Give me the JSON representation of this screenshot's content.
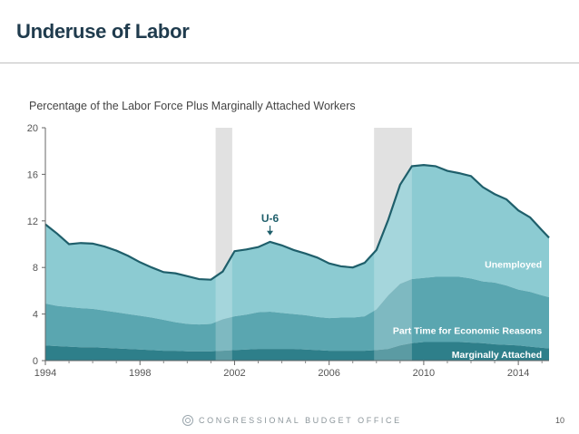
{
  "slide": {
    "title": "Underuse of Labor",
    "footer_org": "CONGRESSIONAL BUDGET OFFICE",
    "page_number": "10"
  },
  "colors": {
    "marginal": "#2e7f8a",
    "part_time": "#5aa6b0",
    "unemployed": "#8ccbd2",
    "recession": "#d9d9d9",
    "axis_text": "#555555",
    "label_text": "#ffffff",
    "u6_label": "#1f5f6b"
  },
  "chart_data": {
    "type": "area",
    "title": "Percentage of the Labor Force Plus Marginally Attached Workers",
    "xlabel": "",
    "ylabel": "",
    "xlim": [
      1994,
      2015.3
    ],
    "ylim": [
      0,
      20
    ],
    "xticks": [
      "1994",
      "1998",
      "2002",
      "2006",
      "2010",
      "2014"
    ],
    "xtick_values": [
      1994,
      1998,
      2002,
      2006,
      2010,
      2014
    ],
    "yticks": [
      "0",
      "4",
      "8",
      "12",
      "16",
      "20"
    ],
    "ytick_values": [
      0,
      4,
      8,
      12,
      16,
      20
    ],
    "recessions": [
      [
        2001.2,
        2001.9
      ],
      [
        2007.9,
        2009.5
      ]
    ],
    "stacked": true,
    "x": [
      1994,
      1994.5,
      1995,
      1995.5,
      1996,
      1996.5,
      1997,
      1997.5,
      1998,
      1998.5,
      1999,
      1999.5,
      2000,
      2000.5,
      2001,
      2001.5,
      2002,
      2002.5,
      2003,
      2003.5,
      2004,
      2004.5,
      2005,
      2005.5,
      2006,
      2006.5,
      2007,
      2007.5,
      2008,
      2008.5,
      2009,
      2009.5,
      2010,
      2010.5,
      2011,
      2011.5,
      2012,
      2012.5,
      2013,
      2013.5,
      2014,
      2014.5,
      2015,
      2015.3
    ],
    "series": [
      {
        "name": "Marginally Attached",
        "values": [
          1.3,
          1.25,
          1.2,
          1.15,
          1.15,
          1.1,
          1.05,
          1.0,
          0.95,
          0.9,
          0.85,
          0.85,
          0.8,
          0.8,
          0.8,
          0.85,
          0.9,
          0.95,
          1.0,
          1.0,
          1.0,
          1.0,
          0.95,
          0.9,
          0.85,
          0.85,
          0.85,
          0.85,
          0.9,
          1.0,
          1.3,
          1.5,
          1.6,
          1.6,
          1.6,
          1.6,
          1.55,
          1.5,
          1.4,
          1.35,
          1.3,
          1.2,
          1.1,
          1.05
        ]
      },
      {
        "name": "Part Time for Economic Reasons",
        "values": [
          3.6,
          3.45,
          3.4,
          3.35,
          3.3,
          3.2,
          3.1,
          3.0,
          2.9,
          2.8,
          2.65,
          2.45,
          2.35,
          2.3,
          2.35,
          2.7,
          2.9,
          3.0,
          3.15,
          3.2,
          3.1,
          3.0,
          2.95,
          2.85,
          2.8,
          2.85,
          2.85,
          2.95,
          3.5,
          4.6,
          5.3,
          5.5,
          5.5,
          5.6,
          5.6,
          5.6,
          5.5,
          5.3,
          5.3,
          5.1,
          4.8,
          4.7,
          4.5,
          4.4
        ]
      },
      {
        "name": "Unemployed",
        "values": [
          6.8,
          6.2,
          5.4,
          5.6,
          5.6,
          5.5,
          5.3,
          5.0,
          4.6,
          4.3,
          4.1,
          4.2,
          4.1,
          3.9,
          3.8,
          4.1,
          5.6,
          5.6,
          5.6,
          6.0,
          5.8,
          5.5,
          5.3,
          5.1,
          4.7,
          4.4,
          4.3,
          4.6,
          5.1,
          6.5,
          8.5,
          9.7,
          9.7,
          9.5,
          9.1,
          8.9,
          8.8,
          8.1,
          7.6,
          7.4,
          6.8,
          6.4,
          5.6,
          5.1
        ]
      }
    ],
    "total_series_name": "U-6",
    "annotations": [
      {
        "text": "U-6",
        "x": 2003.5,
        "y": 11.9,
        "arrow_to_y": 10.6
      },
      {
        "text": "Unemployed",
        "x": 2015.0,
        "y": 8.3
      },
      {
        "text": "Part Time for Economic Reasons",
        "x": 2015.0,
        "y": 2.6
      },
      {
        "text": "Marginally Attached",
        "x": 2015.0,
        "y": 0.55
      }
    ]
  }
}
